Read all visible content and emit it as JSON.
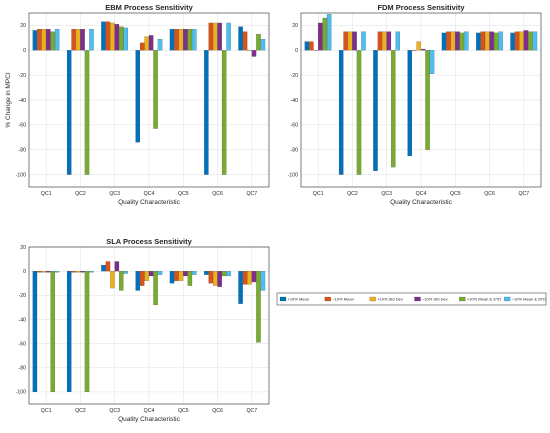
{
  "figure": {
    "ylabel": "% Change in MPCI",
    "xlabel": "Quality Characteristic",
    "categories": [
      "QC1",
      "QC2",
      "QC3",
      "QC4",
      "QC5",
      "QC6",
      "QC7"
    ],
    "series_names": [
      "+10% Mean",
      "−10% Mean",
      "+10% Std Dev",
      "−10% Std Dev",
      "+10% Mean & STD",
      "−10% Mean & STD"
    ],
    "colors": [
      "#0072BD",
      "#D95319",
      "#EDB120",
      "#7E2F8E",
      "#77AC30",
      "#4DBEEE"
    ],
    "legend_position": "right of SLA panel"
  },
  "chart_data": [
    {
      "type": "bar",
      "title": "EBM Process Sensitivity",
      "ylabel": "% Change in MPCI",
      "xlabel": "Quality Characteristic",
      "categories": [
        "QC1",
        "QC2",
        "QC3",
        "QC4",
        "QC5",
        "QC6",
        "QC7"
      ],
      "ylim": [
        -110,
        30
      ],
      "yticks": [
        -100,
        -80,
        -60,
        -40,
        -20,
        0,
        20
      ],
      "grid": true,
      "series": [
        {
          "name": "+10% Mean",
          "values": [
            16,
            -100,
            23,
            -74,
            17,
            -100,
            19
          ]
        },
        {
          "name": "−10% Mean",
          "values": [
            17,
            17,
            23,
            6,
            17,
            22,
            15
          ]
        },
        {
          "name": "+10% Std Dev",
          "values": [
            17,
            17,
            22,
            11,
            17,
            22,
            0
          ]
        },
        {
          "name": "−10% Std Dev",
          "values": [
            17,
            17,
            21,
            12,
            17,
            22,
            -5
          ]
        },
        {
          "name": "+10% Mean & STD",
          "values": [
            15,
            -100,
            19,
            -63,
            17,
            -100,
            13
          ]
        },
        {
          "name": "−10% Mean & STD",
          "values": [
            17,
            17,
            18,
            9,
            17,
            22,
            9
          ]
        }
      ]
    },
    {
      "type": "bar",
      "title": "FDM Process Sensitivity",
      "ylabel": "",
      "xlabel": "Quality Characteristic",
      "categories": [
        "QC1",
        "QC2",
        "QC3",
        "QC4",
        "QC5",
        "QC6",
        "QC7"
      ],
      "ylim": [
        -110,
        30
      ],
      "yticks": [
        -100,
        -80,
        -60,
        -40,
        -20,
        0,
        20
      ],
      "grid": true,
      "series": [
        {
          "name": "+10% Mean",
          "values": [
            7,
            -100,
            -97,
            -85,
            14,
            14,
            14
          ]
        },
        {
          "name": "−10% Mean",
          "values": [
            7,
            15,
            15,
            0,
            15,
            15,
            15
          ]
        },
        {
          "name": "+10% Std Dev",
          "values": [
            0,
            15,
            15,
            7,
            15,
            15,
            15
          ]
        },
        {
          "name": "−10% Std Dev",
          "values": [
            22,
            15,
            15,
            1,
            15,
            15,
            16
          ]
        },
        {
          "name": "+10% Mean & STD",
          "values": [
            26,
            -100,
            -94,
            -80,
            14,
            14,
            15
          ]
        },
        {
          "name": "−10% Mean & STD",
          "values": [
            29,
            15,
            15,
            -19,
            15,
            15,
            15
          ]
        }
      ]
    },
    {
      "type": "bar",
      "title": "SLA Process Sensitivity",
      "ylabel": "",
      "xlabel": "Quality Characteristic",
      "categories": [
        "QC1",
        "QC2",
        "QC3",
        "QC4",
        "QC5",
        "QC6",
        "QC7"
      ],
      "ylim": [
        -110,
        20
      ],
      "yticks": [
        -100,
        -80,
        -60,
        -40,
        -20,
        0,
        20
      ],
      "grid": true,
      "series": [
        {
          "name": "+10% Mean",
          "values": [
            -100,
            -100,
            5,
            -16,
            -10,
            -3,
            -27
          ]
        },
        {
          "name": "−10% Mean",
          "values": [
            -1,
            -1,
            8,
            -12,
            -8,
            -10,
            -11
          ]
        },
        {
          "name": "+10% Std Dev",
          "values": [
            -1,
            -1,
            -14,
            -8,
            -8,
            -12,
            -11
          ]
        },
        {
          "name": "−10% Std Dev",
          "values": [
            -1,
            -1,
            8,
            -4,
            -4,
            -13,
            -9
          ]
        },
        {
          "name": "+10% Mean & STD",
          "values": [
            -100,
            -100,
            -16,
            -28,
            -12,
            -4,
            -59
          ]
        },
        {
          "name": "−10% Mean & STD",
          "values": [
            -1,
            -1,
            -2,
            -3,
            -3,
            -4,
            -16
          ]
        }
      ]
    }
  ]
}
